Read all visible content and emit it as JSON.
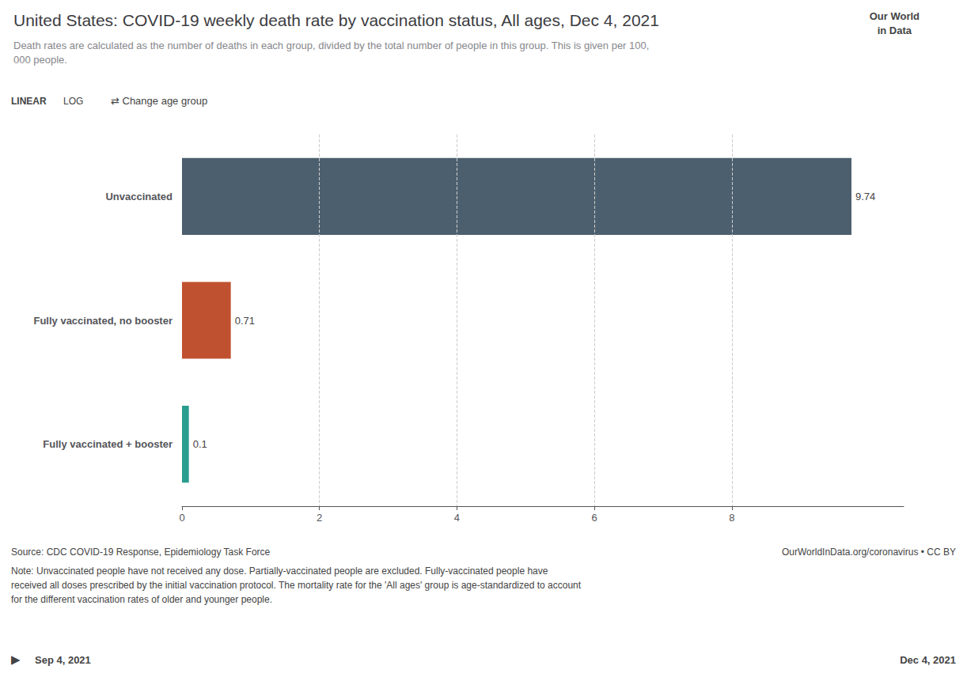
{
  "chart_data": {
    "type": "bar",
    "orientation": "horizontal",
    "title": "United States: COVID-19 weekly death rate by vaccination status, All ages, Dec 4, 2021",
    "subtitle": "Death rates are calculated as the number of deaths in each group, divided by the total number of people in this group. This is given per 100,000 people.",
    "categories": [
      "Unvaccinated",
      "Fully vaccinated, no booster",
      "Fully vaccinated + booster"
    ],
    "values": [
      9.74,
      0.71,
      0.1
    ],
    "colors": [
      "#4c5f6e",
      "#bf5130",
      "#2a9d8f"
    ],
    "data_labels": true,
    "xlim": [
      0,
      10.5
    ],
    "xticks": [
      0,
      2,
      4,
      6,
      8
    ],
    "grid": true,
    "annotations": [
      "Our World",
      "in Data",
      "LINEAR",
      "LOG",
      "⇄ Change age group",
      "Source: CDC COVID-19 Response, Epidemiology Task Force",
      "OurWorldInData.org/coronavirus • CC BY",
      "Note: Unvaccinated people have not received any dose. Partially-vaccinated people are excluded. Fully-vaccinated people have",
      "received all doses prescribed by the initial vaccination protocol. The mortality rate for the 'All ages' group is age-standardized to account",
      "for the different vaccination rates of older and younger people.",
      "▶",
      "Sep 4, 2021",
      "Dec 4, 2021"
    ]
  }
}
